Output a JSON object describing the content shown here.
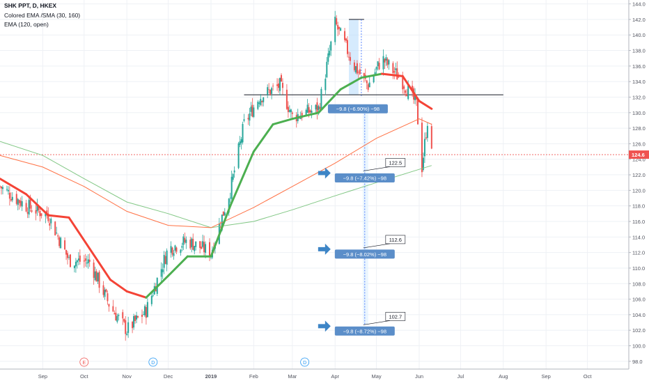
{
  "chart_data": {
    "type": "candlestick",
    "title": "SHK PPT, D, HKEX",
    "indicators": [
      "Colored EMA /SMA (30, 160)",
      "EMA (120, open)"
    ],
    "ylim": [
      97,
      144.5
    ],
    "y_ticks": [
      "98.0",
      "100.0",
      "102.0",
      "104.0",
      "106.0",
      "108.0",
      "110.0",
      "112.0",
      "114.0",
      "116.0",
      "118.0",
      "120.0",
      "122.0",
      "124.0",
      "126.0",
      "128.0",
      "130.0",
      "132.0",
      "134.0",
      "136.0",
      "138.0",
      "140.0",
      "142.0",
      "144.0"
    ],
    "x_labels": [
      "Sep",
      "Oct",
      "Nov",
      "Dec",
      "2019",
      "Feb",
      "Mar",
      "Apr",
      "May",
      "Jun",
      "Jul",
      "Aug",
      "Sep",
      "Oct"
    ],
    "last_price": "124.6",
    "colors": {
      "up": "#26a69a",
      "down": "#ef5350",
      "ema_fast": "#4caf50",
      "ema_slow": "#f44336",
      "ema_orange": "#ff7043",
      "ema_green": "#81c784",
      "label_bg": "#5b8ec9",
      "arrow": "#3d85c6"
    },
    "price_series": [
      {
        "date": "2018-08-01",
        "close": 120.5
      },
      {
        "date": "2018-08-20",
        "close": 118.0
      },
      {
        "date": "2018-09-05",
        "close": 116.8
      },
      {
        "date": "2018-09-20",
        "close": 111.0
      },
      {
        "date": "2018-10-05",
        "close": 110.8
      },
      {
        "date": "2018-10-20",
        "close": 105.0
      },
      {
        "date": "2018-11-01",
        "close": 102.0
      },
      {
        "date": "2018-11-15",
        "close": 104.5
      },
      {
        "date": "2018-12-01",
        "close": 112.5
      },
      {
        "date": "2018-12-15",
        "close": 113.5
      },
      {
        "date": "2019-01-01",
        "close": 112.0
      },
      {
        "date": "2019-01-15",
        "close": 120.0
      },
      {
        "date": "2019-01-25",
        "close": 128.5
      },
      {
        "date": "2019-02-05",
        "close": 132.0
      },
      {
        "date": "2019-02-20",
        "close": 133.5
      },
      {
        "date": "2019-03-01",
        "close": 129.5
      },
      {
        "date": "2019-03-20",
        "close": 130.5
      },
      {
        "date": "2019-04-01",
        "close": 141.5
      },
      {
        "date": "2019-04-15",
        "close": 136.0
      },
      {
        "date": "2019-04-25",
        "close": 133.5
      },
      {
        "date": "2019-05-05",
        "close": 137.0
      },
      {
        "date": "2019-05-20",
        "close": 134.0
      },
      {
        "date": "2019-05-30",
        "close": 131.0
      },
      {
        "date": "2019-06-03",
        "close": 123.0
      },
      {
        "date": "2019-06-07",
        "close": 129.0
      },
      {
        "date": "2019-06-10",
        "close": 124.6
      }
    ],
    "ema_30": [
      {
        "date": "2018-08-01",
        "v": 121.5
      },
      {
        "date": "2018-08-20",
        "v": 119.5
      },
      {
        "date": "2018-09-05",
        "v": 116.8
      },
      {
        "date": "2018-09-20",
        "v": 116.5
      },
      {
        "date": "2018-10-05",
        "v": 112.5
      },
      {
        "date": "2018-10-20",
        "v": 108.5
      },
      {
        "date": "2018-11-01",
        "v": 107.0
      },
      {
        "date": "2018-11-15",
        "v": 106.2
      },
      {
        "date": "2018-12-01",
        "v": 109.0
      },
      {
        "date": "2018-12-15",
        "v": 111.5
      },
      {
        "date": "2019-01-01",
        "v": 111.5
      },
      {
        "date": "2019-01-15",
        "v": 118.0
      },
      {
        "date": "2019-02-01",
        "v": 125.0
      },
      {
        "date": "2019-02-15",
        "v": 128.5
      },
      {
        "date": "2019-03-01",
        "v": 129.2
      },
      {
        "date": "2019-03-20",
        "v": 130.0
      },
      {
        "date": "2019-04-05",
        "v": 133.0
      },
      {
        "date": "2019-04-20",
        "v": 134.5
      },
      {
        "date": "2019-05-05",
        "v": 135.0
      },
      {
        "date": "2019-05-20",
        "v": 134.7
      },
      {
        "date": "2019-06-01",
        "v": 131.5
      },
      {
        "date": "2019-06-10",
        "v": 130.5
      }
    ],
    "sma_160": [
      {
        "date": "2018-08-01",
        "v": 126.3
      },
      {
        "date": "2018-09-01",
        "v": 124.5
      },
      {
        "date": "2018-10-01",
        "v": 121.5
      },
      {
        "date": "2018-11-01",
        "v": 118.5
      },
      {
        "date": "2018-12-01",
        "v": 117.0
      },
      {
        "date": "2019-01-01",
        "v": 115.2
      },
      {
        "date": "2019-02-01",
        "v": 116.0
      },
      {
        "date": "2019-03-01",
        "v": 117.5
      },
      {
        "date": "2019-04-01",
        "v": 119.3
      },
      {
        "date": "2019-05-01",
        "v": 121.0
      },
      {
        "date": "2019-06-01",
        "v": 122.7
      },
      {
        "date": "2019-06-10",
        "v": 123.2
      }
    ],
    "ema_120": [
      {
        "date": "2018-08-01",
        "v": 124.5
      },
      {
        "date": "2018-09-01",
        "v": 123.0
      },
      {
        "date": "2018-10-01",
        "v": 120.5
      },
      {
        "date": "2018-11-01",
        "v": 117.3
      },
      {
        "date": "2018-12-01",
        "v": 115.5
      },
      {
        "date": "2019-01-01",
        "v": 115.2
      },
      {
        "date": "2019-02-01",
        "v": 117.8
      },
      {
        "date": "2019-03-01",
        "v": 120.5
      },
      {
        "date": "2019-04-01",
        "v": 123.5
      },
      {
        "date": "2019-05-01",
        "v": 126.7
      },
      {
        "date": "2019-06-01",
        "v": 129.2
      },
      {
        "date": "2019-06-10",
        "v": 128.5
      }
    ],
    "horizontal_line": {
      "value": 132.3,
      "from": "2019-01-25",
      "to": "2019-08-01"
    },
    "price_range_box": {
      "from": "2019-04-11",
      "to": "2019-04-18",
      "top": 142.0,
      "bottom": 132.3
    },
    "measurements": [
      {
        "label": "−9.8 (−6.90%) −98",
        "at_date": "2019-04-15",
        "y": 130.5
      },
      {
        "label": "−9.8 (−7.42%) −98",
        "at_date": "2019-04-20",
        "y": 121.6,
        "target": "122.5",
        "arrow": true
      },
      {
        "label": "−9.8 (−8.02%) −98",
        "at_date": "2019-04-20",
        "y": 111.8,
        "target": "112.6",
        "arrow": true
      },
      {
        "label": "−9.8 (−8.72%) −98",
        "at_date": "2019-04-20",
        "y": 101.9,
        "target": "102.7",
        "arrow": true
      }
    ],
    "events": [
      {
        "letter": "E",
        "date": "2018-10-01",
        "color": "#ef5350"
      },
      {
        "letter": "D",
        "date": "2018-11-20",
        "color": "#2196f3"
      },
      {
        "letter": "D",
        "date": "2019-03-10",
        "color": "#2196f3"
      }
    ]
  }
}
